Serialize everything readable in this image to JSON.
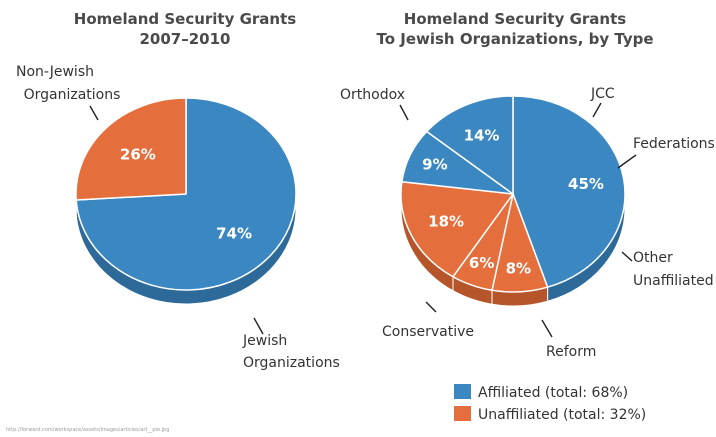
{
  "colors": {
    "affiliated": "#3b87c1",
    "affiliated_side": "#2d6a9a",
    "unaffiliated": "#e46e3c",
    "unaffiliated_side": "#b6542a"
  },
  "chart_data": [
    {
      "type": "pie",
      "title": [
        "Homeland Security Grants",
        "2007–2010"
      ],
      "slices": [
        {
          "label": "Jewish Organizations",
          "value": 74,
          "value_label": "74%",
          "group": "affiliated"
        },
        {
          "label": "Non-Jewish Organizations",
          "value": 26,
          "value_label": "26%",
          "group": "unaffiliated"
        }
      ]
    },
    {
      "type": "pie",
      "title": [
        "Homeland Security Grants",
        "To Jewish Organizations, by Type"
      ],
      "slices": [
        {
          "label": "Orthodox",
          "value": 45,
          "value_label": "45%",
          "group": "affiliated"
        },
        {
          "label": "JCC",
          "value": 8,
          "value_label": "8%",
          "group": "unaffiliated"
        },
        {
          "label": "Federations",
          "value": 6,
          "value_label": "6%",
          "group": "unaffiliated"
        },
        {
          "label": "Other Unaffiliated",
          "value": 18,
          "value_label": "18%",
          "group": "unaffiliated"
        },
        {
          "label": "Reform",
          "value": 9,
          "value_label": "9%",
          "group": "affiliated"
        },
        {
          "label": "Conservative",
          "value": 14,
          "value_label": "14%",
          "group": "affiliated"
        }
      ],
      "legend": [
        {
          "label": "Affiliated (total: 68%)",
          "group": "affiliated"
        },
        {
          "label": "Unaffiliated (total: 32%)",
          "group": "unaffiliated"
        }
      ]
    }
  ],
  "source_url": "http://forward.com/workspace/assets/images/articles/art__pie.jpg"
}
